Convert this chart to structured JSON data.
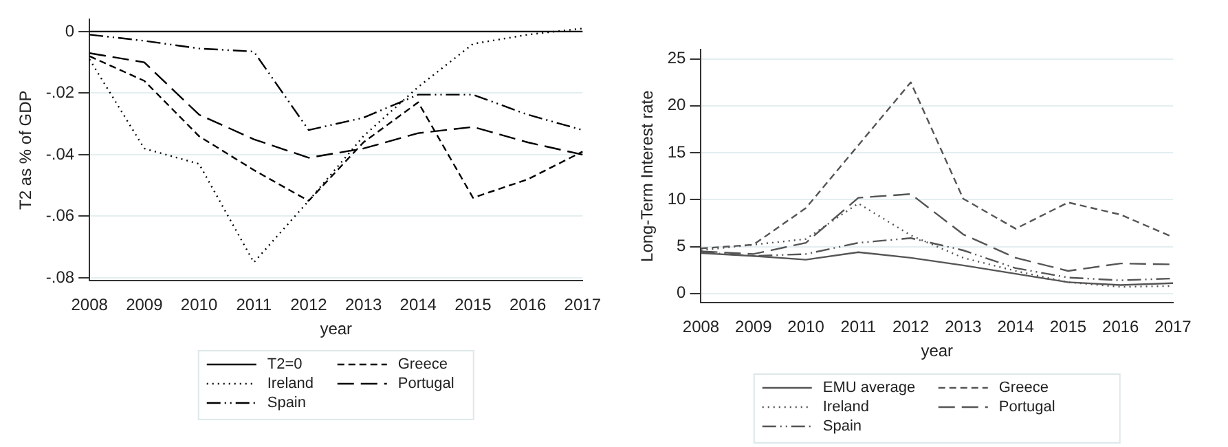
{
  "chart_data": [
    {
      "type": "line",
      "xlabel": "year",
      "ylabel": "T2 as % of GDP",
      "categories": [
        "2008",
        "2009",
        "2010",
        "2011",
        "2012",
        "2013",
        "2014",
        "2015",
        "2016",
        "2017"
      ],
      "series": [
        {
          "name": "T2=0",
          "color": "#000000",
          "line_style": "solid",
          "values": [
            0,
            0,
            0,
            0,
            0,
            0,
            0,
            0,
            0,
            0
          ]
        },
        {
          "name": "Greece",
          "color": "#000000",
          "line_style": "dashed",
          "values": [
            -0.008,
            -0.016,
            -0.034,
            -0.045,
            -0.055,
            -0.036,
            -0.023,
            -0.054,
            -0.048,
            -0.039
          ]
        },
        {
          "name": "Ireland",
          "color": "#000000",
          "line_style": "dotted",
          "values": [
            -0.009,
            -0.038,
            -0.043,
            -0.075,
            -0.055,
            -0.034,
            -0.018,
            -0.004,
            -0.001,
            0.001
          ]
        },
        {
          "name": "Portugal",
          "color": "#000000",
          "line_style": "longdash",
          "values": [
            -0.007,
            -0.01,
            -0.027,
            -0.035,
            -0.041,
            -0.038,
            -0.033,
            -0.031,
            -0.036,
            -0.04
          ]
        },
        {
          "name": "Spain",
          "color": "#000000",
          "line_style": "dashdot",
          "values": [
            -0.001,
            -0.003,
            -0.0055,
            -0.0065,
            -0.032,
            -0.028,
            -0.0205,
            -0.0205,
            -0.027,
            -0.032
          ]
        }
      ],
      "ylim": [
        -0.081,
        0.004
      ],
      "yticks": [
        0,
        {
          "value": -0.02,
          "label": "-.02"
        },
        {
          "value": -0.04,
          "label": "-.04"
        },
        {
          "value": -0.06,
          "label": "-.06"
        },
        {
          "value": -0.08,
          "label": "-.08"
        }
      ],
      "grid": "y",
      "legend": "bottom",
      "marker": "none"
    },
    {
      "type": "line",
      "xlabel": "year",
      "ylabel": "Long-Term Interest rate",
      "categories": [
        "2008",
        "2009",
        "2010",
        "2011",
        "2012",
        "2013",
        "2014",
        "2015",
        "2016",
        "2017"
      ],
      "series": [
        {
          "name": "EMU average",
          "color": "#555555",
          "line_style": "solid",
          "values": [
            4.3,
            4.0,
            3.6,
            4.4,
            3.8,
            3.0,
            2.1,
            1.2,
            0.9,
            1.1
          ]
        },
        {
          "name": "Greece",
          "color": "#555555",
          "line_style": "dashed",
          "values": [
            4.8,
            5.2,
            9.1,
            15.8,
            22.5,
            10.1,
            6.9,
            9.7,
            8.4,
            6.0
          ]
        },
        {
          "name": "Ireland",
          "color": "#555555",
          "line_style": "dotted",
          "values": [
            4.6,
            5.2,
            5.8,
            9.6,
            6.2,
            3.8,
            2.4,
            1.2,
            0.7,
            0.8
          ]
        },
        {
          "name": "Portugal",
          "color": "#555555",
          "line_style": "longdash",
          "values": [
            4.5,
            4.2,
            5.4,
            10.2,
            10.6,
            6.3,
            3.8,
            2.4,
            3.2,
            3.1
          ]
        },
        {
          "name": "Spain",
          "color": "#555555",
          "line_style": "dashdot",
          "values": [
            4.4,
            4.0,
            4.2,
            5.4,
            5.9,
            4.6,
            2.7,
            1.7,
            1.4,
            1.6
          ]
        }
      ],
      "ylim": [
        -1,
        26
      ],
      "yticks": [
        0,
        5,
        10,
        15,
        20,
        25
      ],
      "grid": "y",
      "legend": "bottom",
      "marker": "none"
    }
  ]
}
